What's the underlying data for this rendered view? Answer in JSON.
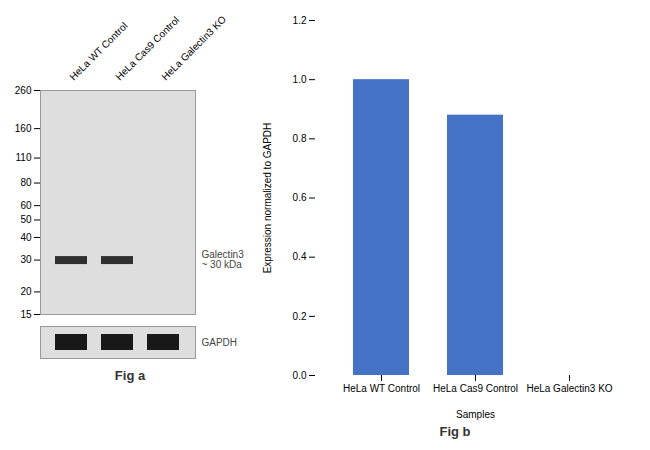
{
  "chart_data": [
    {
      "type": "western_blot",
      "title": "Fig a",
      "categories": [
        "HeLa WT Control",
        "HeLa Cas9 Control",
        "HeLa Galectin3 KO"
      ],
      "log": "y",
      "ylim": [
        15,
        260
      ],
      "yticks": [
        260,
        160,
        110,
        80,
        60,
        50,
        40,
        30,
        20,
        15
      ],
      "color": "#dedede",
      "series": [
        {
          "name": "Galectin3\n~ 30 kDa",
          "color": "#303030",
          "values": [
            30,
            30,
            null
          ]
        },
        {
          "name": "GAPDH",
          "color": "#181818",
          "values": [
            true,
            true,
            true
          ]
        }
      ]
    },
    {
      "type": "bar",
      "title": "Fig b",
      "categories": [
        "HeLa WT Control",
        "HeLa Cas9 Control",
        "HeLa Galectin3 KO"
      ],
      "values": [
        1.0,
        0.88,
        0.0
      ],
      "color": "#4472C4",
      "xlabel": "Samples",
      "ylabel": "Expression normalized to GAPDH",
      "ylim": [
        0,
        1.2
      ],
      "yticks": [
        {
          "value": 0,
          "label": "0.0"
        },
        {
          "value": 0.2,
          "label": "0.2"
        },
        {
          "value": 0.4,
          "label": "0.4"
        },
        {
          "value": 0.6,
          "label": "0.6"
        },
        {
          "value": 0.8,
          "label": "0.8"
        },
        {
          "value": 1.0,
          "label": "1.0"
        },
        {
          "value": 1.2,
          "label": "1.2"
        }
      ]
    }
  ]
}
